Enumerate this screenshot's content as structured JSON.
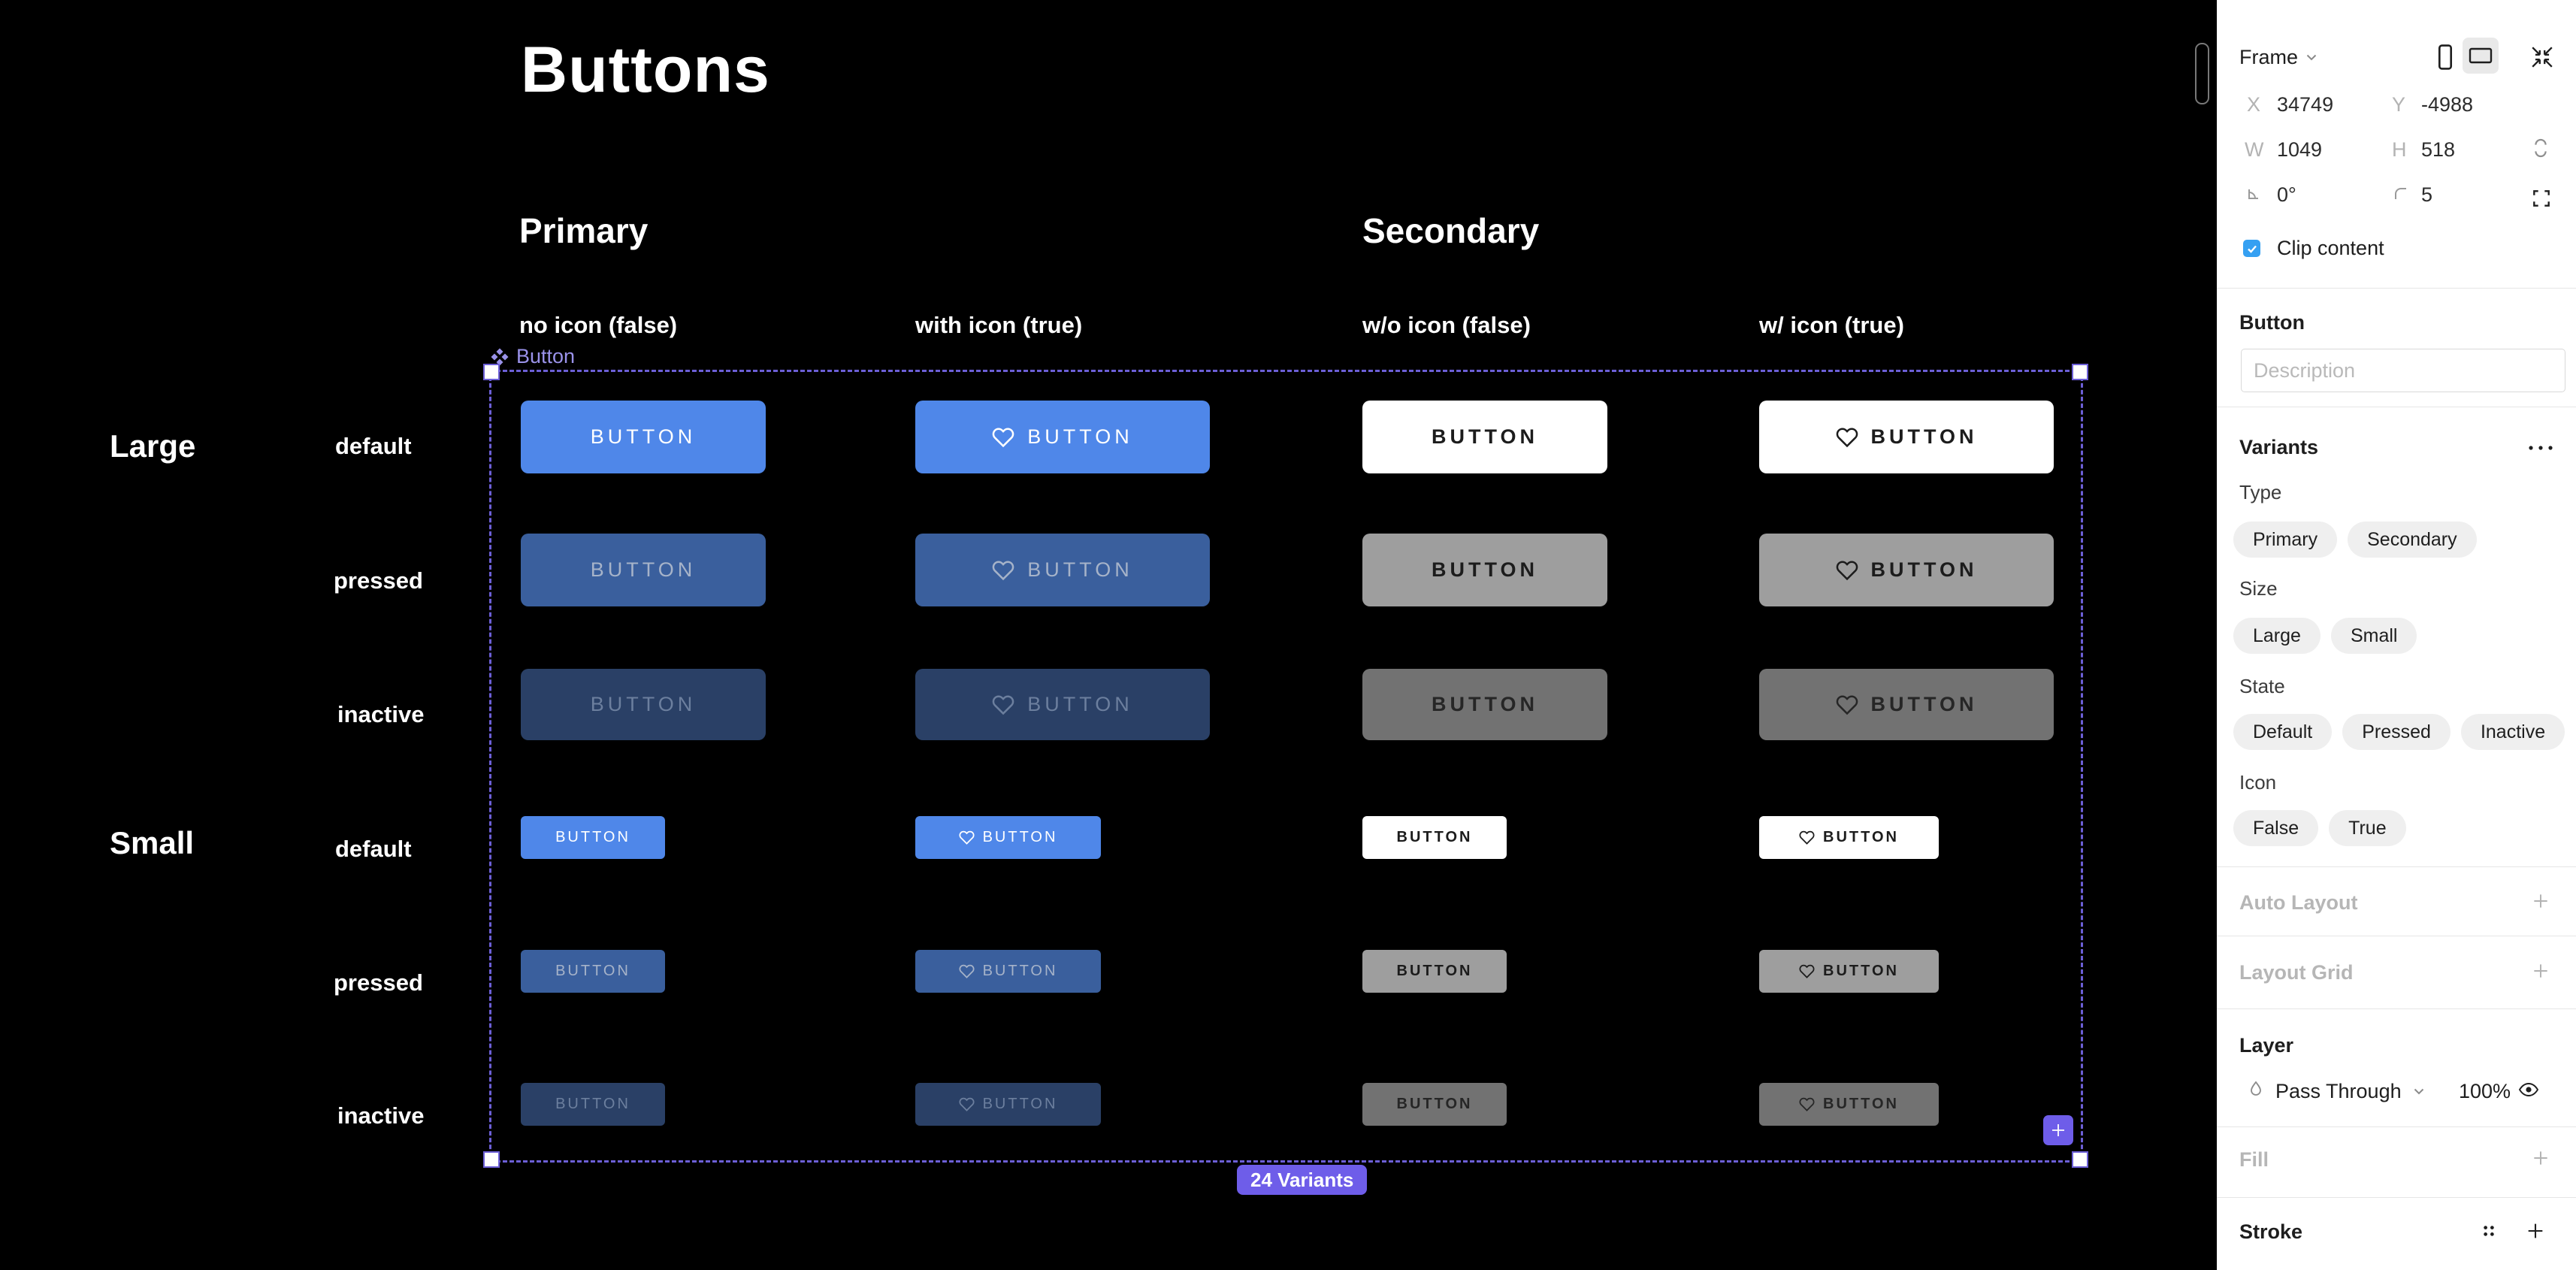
{
  "canvas": {
    "title": "Buttons",
    "group_primary": "Primary",
    "group_secondary": "Secondary",
    "col_headers": [
      "no icon (false)",
      "with icon (true)",
      "w/o icon (false)",
      "w/ icon (true)"
    ],
    "row_size_large": "Large",
    "row_size_small": "Small",
    "row_states": [
      "default",
      "pressed",
      "inactive"
    ],
    "button_label": "BUTTON",
    "selection_tag": "Button",
    "variants_badge": "24 Variants",
    "colors": {
      "canvas_bg": "#000000",
      "selection_purple": "#6c5fd6",
      "badge_purple": "#6e5de9",
      "primary": {
        "default_bg": "#4f87e9",
        "default_fg": "#ffffff",
        "pressed_bg": "#3a5f9d",
        "pressed_fg": "#a6b3c9",
        "inactive_bg": "#2a4066",
        "inactive_fg": "#6c7f9e"
      },
      "secondary": {
        "default_bg": "#ffffff",
        "default_fg": "#1c1c1c",
        "pressed_bg": "#9e9e9e",
        "pressed_fg": "#1c1c1c",
        "inactive_bg": "#727272",
        "inactive_fg": "#262626"
      }
    }
  },
  "panel": {
    "element_type": "Frame",
    "fields": {
      "x_label": "X",
      "x_value": "34749",
      "y_label": "Y",
      "y_value": "-4988",
      "w_label": "W",
      "w_value": "1049",
      "h_label": "H",
      "h_value": "518",
      "rotation_value": "0°",
      "radius_value": "5"
    },
    "clip_content_label": "Clip content",
    "component_title": "Button",
    "description_placeholder": "Description",
    "variants_title": "Variants",
    "prop_groups": [
      {
        "label": "Type",
        "options": [
          "Primary",
          "Secondary"
        ]
      },
      {
        "label": "Size",
        "options": [
          "Large",
          "Small"
        ]
      },
      {
        "label": "State",
        "options": [
          "Default",
          "Pressed",
          "Inactive"
        ]
      },
      {
        "label": "Icon",
        "options": [
          "False",
          "True"
        ]
      }
    ],
    "auto_layout_title": "Auto Layout",
    "layout_grid_title": "Layout Grid",
    "layer_title": "Layer",
    "blend_mode": "Pass Through",
    "opacity": "100%",
    "fill_title": "Fill",
    "stroke_title": "Stroke"
  }
}
